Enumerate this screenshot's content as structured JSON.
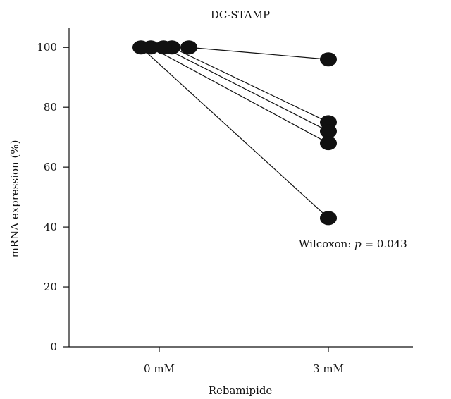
{
  "chart_data": {
    "type": "scatter",
    "title": "DC-STAMP",
    "xlabel": "Rebamipide",
    "ylabel": "mRNA expression (%)",
    "categories": [
      "0 mM",
      "3 mM"
    ],
    "ylim": [
      0,
      105
    ],
    "yticks": [
      0,
      20,
      40,
      60,
      80,
      100
    ],
    "legend": "none",
    "grid": false,
    "series": [
      {
        "values": [
          100,
          96
        ]
      },
      {
        "values": [
          100,
          75
        ]
      },
      {
        "values": [
          100,
          72
        ]
      },
      {
        "values": [
          100,
          68
        ]
      },
      {
        "values": [
          100,
          43
        ]
      }
    ],
    "annotation": {
      "prefix": "Wilcoxon: ",
      "p_symbol": "p",
      "suffix": " = 0.043"
    }
  }
}
